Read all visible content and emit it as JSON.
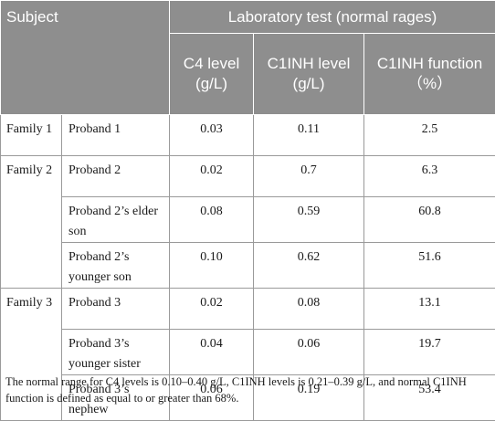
{
  "header": {
    "subject": "Subject",
    "lab_test": "Laboratory test (normal rages)",
    "c4": "C4 level (g/L)",
    "c1inh_level": "C1INH level (g/L)",
    "c1inh_function": "C1INH function （%）"
  },
  "rows": [
    {
      "family": "Family 1",
      "subject": "Proband 1",
      "c4": "0.03",
      "c1inh_level": "0.11",
      "c1inh_function": "2.5"
    },
    {
      "family": "Family 2",
      "subject": "Proband 2",
      "c4": "0.02",
      "c1inh_level": "0.7",
      "c1inh_function": "6.3"
    },
    {
      "family": "",
      "subject": "Proband 2’s elder son",
      "c4": "0.08",
      "c1inh_level": "0.59",
      "c1inh_function": "60.8"
    },
    {
      "family": "",
      "subject": "Proband 2’s younger son",
      "c4": "0.10",
      "c1inh_level": "0.62",
      "c1inh_function": "51.6"
    },
    {
      "family": "Family 3",
      "subject": "Proband 3",
      "c4": "0.02",
      "c1inh_level": "0.08",
      "c1inh_function": "13.1"
    },
    {
      "family": "",
      "subject": "Proband 3’s younger sister",
      "c4": "0.04",
      "c1inh_level": "0.06",
      "c1inh_function": "19.7"
    },
    {
      "family": "",
      "subject": "Proband 3’s nephew",
      "c4": "0.06",
      "c1inh_level": "0.19",
      "c1inh_function": "53.4"
    }
  ],
  "footnote": "The normal range for C4 levels is 0.10–0.40 g/L, C1INH levels is 0.21–0.39 g/L, and normal C1INH function is defined as equal to or greater than 68%."
}
